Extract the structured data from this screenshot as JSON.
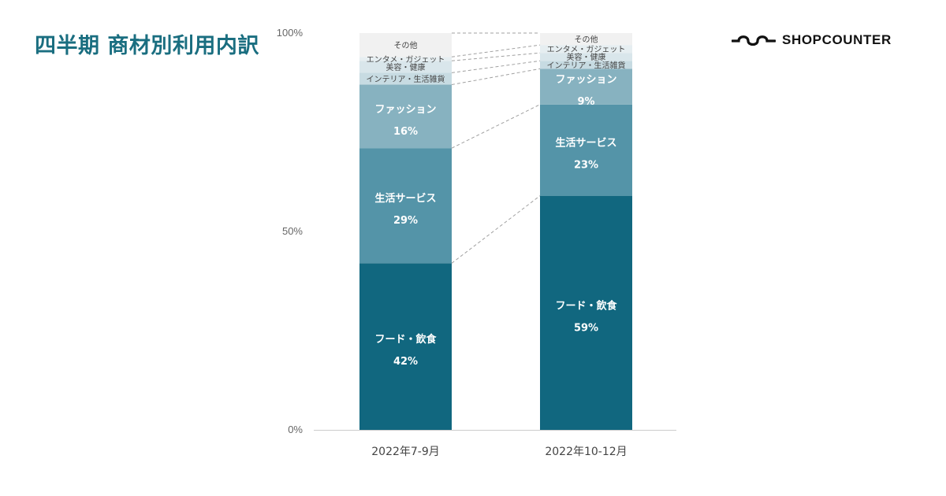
{
  "title": "四半期 商材別利用内訳",
  "brand": {
    "name": "SHOPCOUNTER",
    "logo_icon": "wave-link-icon"
  },
  "chart_data": {
    "type": "bar",
    "stacked": true,
    "normalized": true,
    "categories": [
      "2022年7-9月",
      "2022年10-12月"
    ],
    "series": [
      {
        "name": "フード・飲食",
        "values": [
          42,
          59
        ],
        "color": "#11677f"
      },
      {
        "name": "生活サービス",
        "values": [
          29,
          23
        ],
        "color": "#5494a8"
      },
      {
        "name": "ファッション",
        "values": [
          16,
          9
        ],
        "color": "#87b2c0"
      },
      {
        "name": "インテリア・生活雑貨",
        "values": [
          3,
          2
        ],
        "color": "#c7dbe2"
      },
      {
        "name": "美容・健康",
        "values": [
          3,
          2
        ],
        "color": "#d9e6eb"
      },
      {
        "name": "エンタメ・ガジェット",
        "values": [
          1,
          2
        ],
        "color": "#e6eef1"
      },
      {
        "name": "その他",
        "values": [
          6,
          3
        ],
        "color": "#f1f1f1"
      }
    ],
    "yticks": [
      "0%",
      "50%",
      "100%"
    ],
    "ylim": [
      0,
      100
    ],
    "grid": false,
    "legend": "none"
  }
}
